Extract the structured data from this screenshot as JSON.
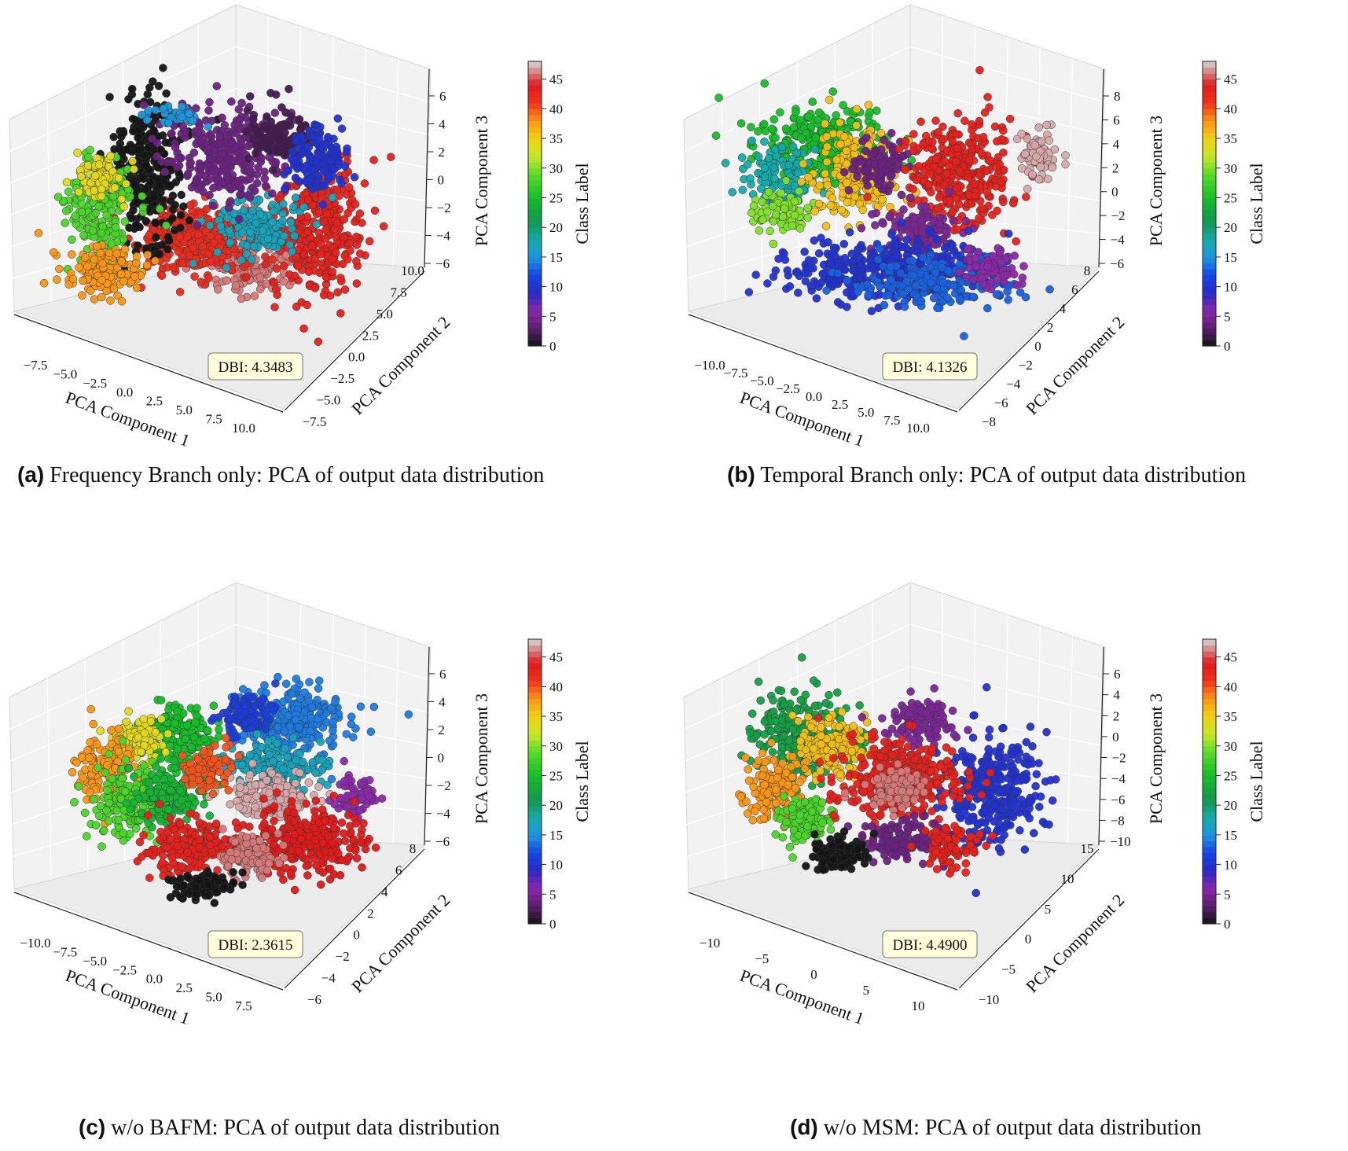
{
  "chart_data": [
    {
      "type": "scatter",
      "panel_label": "(a)",
      "caption": "Frequency Branch only: PCA of output data distribution",
      "xlabel": "PCA Component 1",
      "ylabel": "PCA Component 2",
      "zlabel": "PCA Component 3",
      "xticks": [
        "−7.5",
        "−5.0",
        "−2.5",
        "0.0",
        "2.5",
        "5.0",
        "7.5",
        "10.0"
      ],
      "yticks": [
        "−7.5",
        "−5.0",
        "−2.5",
        "0.0",
        "2.5",
        "5.0",
        "7.5",
        "10.0"
      ],
      "zticks": [
        "−6",
        "−4",
        "−2",
        "0",
        "2",
        "4",
        "6"
      ],
      "annotation": "DBI: 4.3483",
      "colorbar": {
        "label": "Class Label",
        "ticks": [
          "0",
          "5",
          "10",
          "15",
          "20",
          "25",
          "30",
          "35",
          "40",
          "45"
        ],
        "range": [
          0,
          48
        ]
      },
      "clusters": [
        {
          "cls": 46,
          "cx": 0.55,
          "cy": 0.7,
          "rx": 0.13,
          "ry": 0.14,
          "n": 220
        },
        {
          "cls": 42,
          "cx": 0.4,
          "cy": 0.62,
          "rx": 0.16,
          "ry": 0.14,
          "n": 300
        },
        {
          "cls": 43,
          "cx": 0.78,
          "cy": 0.58,
          "rx": 0.14,
          "ry": 0.28,
          "n": 320
        },
        {
          "cls": 17,
          "cx": 0.6,
          "cy": 0.55,
          "rx": 0.12,
          "ry": 0.12,
          "n": 150
        },
        {
          "cls": 0,
          "cx": 0.25,
          "cy": 0.32,
          "rx": 0.11,
          "ry": 0.3,
          "n": 300
        },
        {
          "cls": 4,
          "cx": 0.5,
          "cy": 0.25,
          "rx": 0.16,
          "ry": 0.17,
          "n": 280
        },
        {
          "cls": 2,
          "cx": 0.66,
          "cy": 0.16,
          "rx": 0.09,
          "ry": 0.12,
          "n": 120
        },
        {
          "cls": 10,
          "cx": 0.78,
          "cy": 0.28,
          "rx": 0.08,
          "ry": 0.12,
          "n": 140
        },
        {
          "cls": 28,
          "cx": 0.1,
          "cy": 0.48,
          "rx": 0.1,
          "ry": 0.2,
          "n": 200
        },
        {
          "cls": 34,
          "cx": 0.1,
          "cy": 0.35,
          "rx": 0.06,
          "ry": 0.1,
          "n": 90
        },
        {
          "cls": 38,
          "cx": 0.12,
          "cy": 0.76,
          "rx": 0.12,
          "ry": 0.1,
          "n": 160
        },
        {
          "cls": 15,
          "cx": 0.35,
          "cy": 0.07,
          "rx": 0.08,
          "ry": 0.04,
          "n": 40
        }
      ]
    },
    {
      "type": "scatter",
      "panel_label": "(b)",
      "caption": "Temporal Branch only: PCA of output data distribution",
      "xlabel": "PCA Component 1",
      "ylabel": "PCA Component 2",
      "zlabel": "PCA Component 3",
      "xticks": [
        "−10.0",
        "−7.5",
        "−5.0",
        "−2.5",
        "0.0",
        "2.5",
        "5.0",
        "7.5",
        "10.0"
      ],
      "yticks": [
        "−8",
        "−6",
        "−4",
        "−2",
        "0",
        "2",
        "4",
        "6",
        "8"
      ],
      "zticks": [
        "−6",
        "−4",
        "−2",
        "0",
        "2",
        "4",
        "6",
        "8"
      ],
      "annotation": "DBI: 4.1326",
      "colorbar": {
        "label": "Class Label",
        "ticks": [
          "0",
          "5",
          "10",
          "15",
          "20",
          "25",
          "30",
          "35",
          "40",
          "45"
        ],
        "range": [
          0,
          48
        ]
      },
      "clusters": [
        {
          "cls": 25,
          "cx": 0.25,
          "cy": 0.2,
          "rx": 0.18,
          "ry": 0.16,
          "n": 280
        },
        {
          "cls": 18,
          "cx": 0.12,
          "cy": 0.35,
          "rx": 0.1,
          "ry": 0.12,
          "n": 120
        },
        {
          "cls": 30,
          "cx": 0.12,
          "cy": 0.5,
          "rx": 0.08,
          "ry": 0.08,
          "n": 80
        },
        {
          "cls": 36,
          "cx": 0.35,
          "cy": 0.32,
          "rx": 0.12,
          "ry": 0.18,
          "n": 220
        },
        {
          "cls": 4,
          "cx": 0.42,
          "cy": 0.3,
          "rx": 0.08,
          "ry": 0.1,
          "n": 90
        },
        {
          "cls": 43,
          "cx": 0.68,
          "cy": 0.32,
          "rx": 0.16,
          "ry": 0.22,
          "n": 340
        },
        {
          "cls": 47,
          "cx": 0.93,
          "cy": 0.25,
          "rx": 0.05,
          "ry": 0.1,
          "n": 70
        },
        {
          "cls": 5,
          "cx": 0.55,
          "cy": 0.58,
          "rx": 0.12,
          "ry": 0.1,
          "n": 120
        },
        {
          "cls": 10,
          "cx": 0.45,
          "cy": 0.75,
          "rx": 0.3,
          "ry": 0.12,
          "n": 380
        },
        {
          "cls": 13,
          "cx": 0.6,
          "cy": 0.82,
          "rx": 0.22,
          "ry": 0.1,
          "n": 180
        },
        {
          "cls": 6,
          "cx": 0.78,
          "cy": 0.75,
          "rx": 0.08,
          "ry": 0.08,
          "n": 70
        }
      ]
    },
    {
      "type": "scatter",
      "panel_label": "(c)",
      "caption": "w/o BAFM: PCA of output data distribution",
      "xlabel": "PCA Component 1",
      "ylabel": "PCA Component 2",
      "zlabel": "PCA Component 3",
      "xticks": [
        "−10.0",
        "−7.5",
        "−5.0",
        "−2.5",
        "0.0",
        "2.5",
        "5.0",
        "7.5"
      ],
      "yticks": [
        "−6",
        "−4",
        "−2",
        "0",
        "2",
        "4",
        "6",
        "8"
      ],
      "zticks": [
        "−6",
        "−4",
        "−2",
        "0",
        "2",
        "4",
        "6"
      ],
      "annotation": "DBI: 2.3615",
      "colorbar": {
        "label": "Class Label",
        "ticks": [
          "0",
          "5",
          "10",
          "15",
          "20",
          "25",
          "30",
          "35",
          "40",
          "45"
        ],
        "range": [
          0,
          48
        ]
      },
      "clusters": [
        {
          "cls": 25,
          "cx": 0.35,
          "cy": 0.25,
          "rx": 0.1,
          "ry": 0.12,
          "n": 180
        },
        {
          "cls": 34,
          "cx": 0.22,
          "cy": 0.28,
          "rx": 0.08,
          "ry": 0.1,
          "n": 100
        },
        {
          "cls": 38,
          "cx": 0.12,
          "cy": 0.4,
          "rx": 0.08,
          "ry": 0.14,
          "n": 140
        },
        {
          "cls": 28,
          "cx": 0.18,
          "cy": 0.55,
          "rx": 0.1,
          "ry": 0.14,
          "n": 180
        },
        {
          "cls": 24,
          "cx": 0.32,
          "cy": 0.52,
          "rx": 0.1,
          "ry": 0.12,
          "n": 160
        },
        {
          "cls": 14,
          "cx": 0.7,
          "cy": 0.2,
          "rx": 0.16,
          "ry": 0.14,
          "n": 260
        },
        {
          "cls": 11,
          "cx": 0.55,
          "cy": 0.17,
          "rx": 0.08,
          "ry": 0.08,
          "n": 90
        },
        {
          "cls": 17,
          "cx": 0.65,
          "cy": 0.4,
          "rx": 0.14,
          "ry": 0.1,
          "n": 160
        },
        {
          "cls": 47,
          "cx": 0.64,
          "cy": 0.52,
          "rx": 0.12,
          "ry": 0.09,
          "n": 160
        },
        {
          "cls": 40,
          "cx": 0.44,
          "cy": 0.4,
          "rx": 0.06,
          "ry": 0.1,
          "n": 80
        },
        {
          "cls": 6,
          "cx": 0.9,
          "cy": 0.52,
          "rx": 0.06,
          "ry": 0.08,
          "n": 70
        },
        {
          "cls": 43,
          "cx": 0.38,
          "cy": 0.75,
          "rx": 0.12,
          "ry": 0.12,
          "n": 180
        },
        {
          "cls": 44,
          "cx": 0.75,
          "cy": 0.72,
          "rx": 0.16,
          "ry": 0.14,
          "n": 300
        },
        {
          "cls": 46,
          "cx": 0.56,
          "cy": 0.78,
          "rx": 0.08,
          "ry": 0.08,
          "n": 110
        },
        {
          "cls": 0,
          "cx": 0.42,
          "cy": 0.92,
          "rx": 0.1,
          "ry": 0.05,
          "n": 90
        }
      ]
    },
    {
      "type": "scatter",
      "panel_label": "(d)",
      "caption": "w/o MSM: PCA of output data distribution",
      "xlabel": "PCA Component 1",
      "ylabel": "PCA Component 2",
      "zlabel": "PCA Component 3",
      "xticks": [
        "−10",
        "−5",
        "0",
        "5",
        "10"
      ],
      "yticks": [
        "−10",
        "−5",
        "0",
        "5",
        "10",
        "15"
      ],
      "zticks": [
        "−10",
        "−8",
        "−6",
        "−4",
        "−2",
        "0",
        "2",
        "4",
        "6"
      ],
      "annotation": "DBI: 4.4900",
      "colorbar": {
        "label": "Class Label",
        "ticks": [
          "0",
          "5",
          "10",
          "15",
          "20",
          "25",
          "30",
          "35",
          "40",
          "45"
        ],
        "range": [
          0,
          48
        ]
      },
      "clusters": [
        {
          "cls": 22,
          "cx": 0.18,
          "cy": 0.25,
          "rx": 0.14,
          "ry": 0.18,
          "n": 240
        },
        {
          "cls": 36,
          "cx": 0.28,
          "cy": 0.3,
          "rx": 0.1,
          "ry": 0.12,
          "n": 160
        },
        {
          "cls": 38,
          "cx": 0.1,
          "cy": 0.5,
          "rx": 0.08,
          "ry": 0.14,
          "n": 140
        },
        {
          "cls": 28,
          "cx": 0.2,
          "cy": 0.62,
          "rx": 0.08,
          "ry": 0.1,
          "n": 110
        },
        {
          "cls": 5,
          "cx": 0.55,
          "cy": 0.2,
          "rx": 0.1,
          "ry": 0.1,
          "n": 120
        },
        {
          "cls": 10,
          "cx": 0.78,
          "cy": 0.5,
          "rx": 0.14,
          "ry": 0.22,
          "n": 300
        },
        {
          "cls": 43,
          "cx": 0.5,
          "cy": 0.45,
          "rx": 0.18,
          "ry": 0.16,
          "n": 340
        },
        {
          "cls": 46,
          "cx": 0.48,
          "cy": 0.5,
          "rx": 0.08,
          "ry": 0.08,
          "n": 90
        },
        {
          "cls": 4,
          "cx": 0.5,
          "cy": 0.72,
          "rx": 0.12,
          "ry": 0.08,
          "n": 120
        },
        {
          "cls": 43,
          "cx": 0.65,
          "cy": 0.75,
          "rx": 0.08,
          "ry": 0.08,
          "n": 90
        },
        {
          "cls": 0,
          "cx": 0.3,
          "cy": 0.78,
          "rx": 0.07,
          "ry": 0.07,
          "n": 120
        }
      ]
    }
  ]
}
